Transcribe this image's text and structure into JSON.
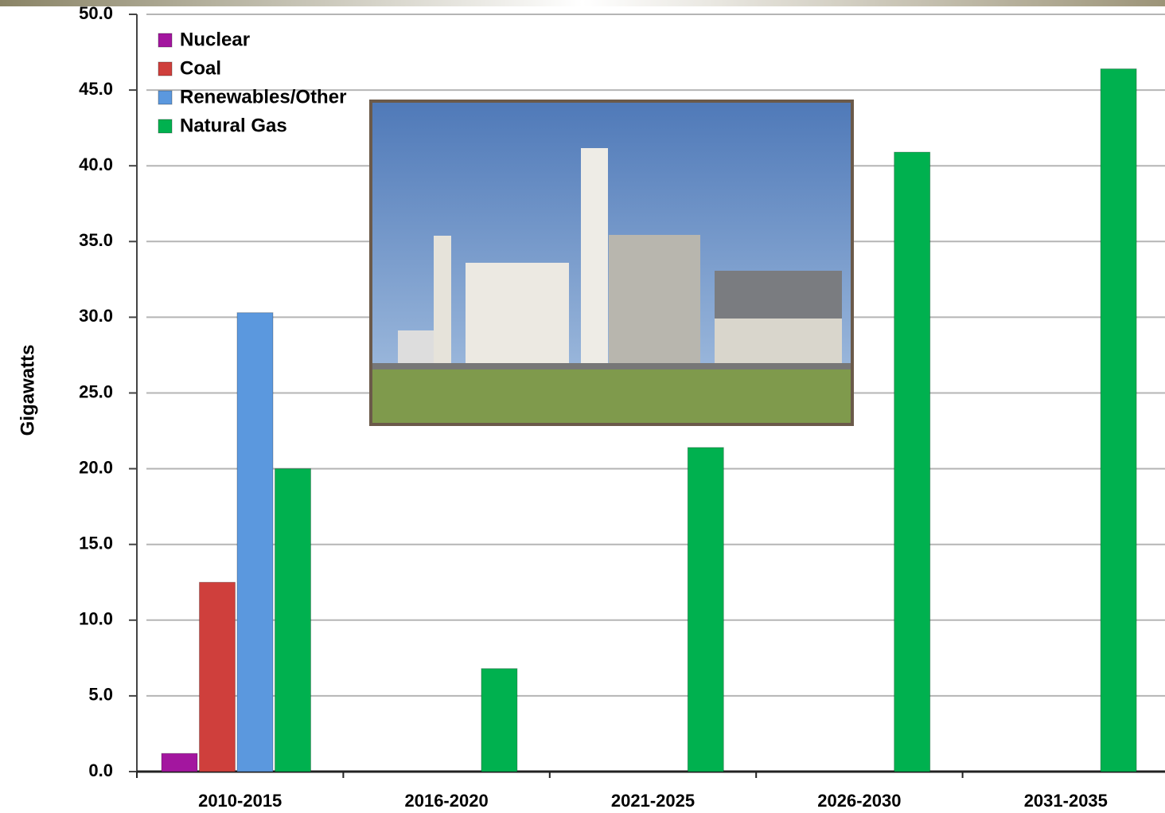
{
  "chart_data": {
    "type": "bar",
    "y_label": "Gigawatts",
    "categories": [
      "2010-2015",
      "2016-2020",
      "2021-2025",
      "2026-2030",
      "2031-2035"
    ],
    "series": [
      {
        "name": "Nuclear",
        "color": "#a3169f",
        "values": [
          1.2,
          null,
          null,
          null,
          null
        ]
      },
      {
        "name": "Coal",
        "color": "#cf3f3c",
        "values": [
          12.5,
          null,
          null,
          null,
          null
        ]
      },
      {
        "name": "Renewables/Other",
        "color": "#5b98de",
        "values": [
          30.3,
          null,
          null,
          null,
          null
        ]
      },
      {
        "name": "Natural Gas",
        "color": "#00b14f",
        "values": [
          20.0,
          6.8,
          21.4,
          40.9,
          46.4
        ]
      }
    ],
    "ylim": [
      0,
      50
    ],
    "yticks": [
      {
        "value": 0,
        "label": "0.0"
      },
      {
        "value": 5,
        "label": "5.0"
      },
      {
        "value": 10,
        "label": "10.0"
      },
      {
        "value": 15,
        "label": "15.0"
      },
      {
        "value": 20,
        "label": "20.0"
      },
      {
        "value": 25,
        "label": "25.0"
      },
      {
        "value": 30,
        "label": "30.0"
      },
      {
        "value": 35,
        "label": "35.0"
      },
      {
        "value": 40,
        "label": "40.0"
      },
      {
        "value": 45,
        "label": "45.0"
      },
      {
        "value": 50,
        "label": "50.0"
      }
    ],
    "grid": true,
    "legend": "top-left"
  }
}
